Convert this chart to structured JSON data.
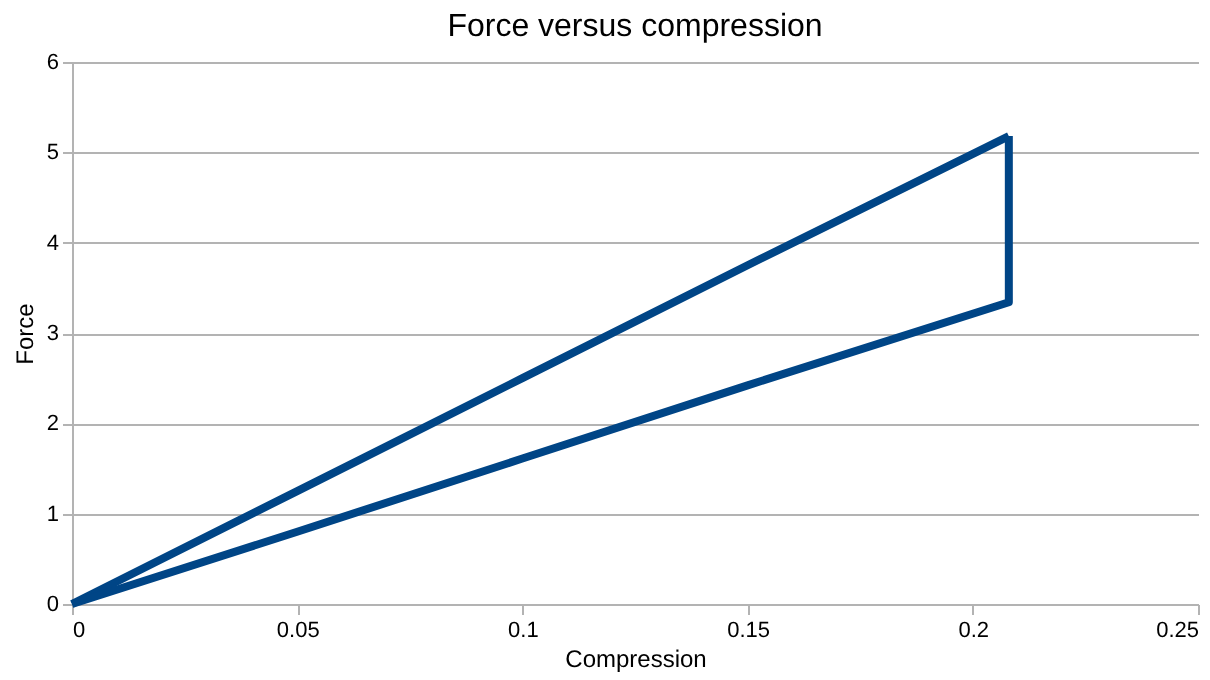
{
  "chart_data": {
    "type": "line",
    "title": "Force versus compression",
    "xlabel": "Compression",
    "ylabel": "Force",
    "series": [
      {
        "color": "#004586",
        "x": [
          0,
          0.05,
          0.1,
          0.15,
          0.208
        ],
        "values": [
          0,
          1.25,
          2.5,
          3.75,
          5.18
        ]
      },
      {
        "color": "#004586",
        "x": [
          0,
          0.05,
          0.1,
          0.15,
          0.208,
          0.208
        ],
        "values": [
          0,
          0.8,
          1.61,
          2.42,
          3.34,
          5.18
        ]
      }
    ],
    "xlim": [
      0,
      0.25
    ],
    "xticks": [
      0,
      0.05,
      0.1,
      0.15,
      0.2,
      0.25
    ],
    "ylim": [
      0,
      6
    ],
    "yticks": [
      0,
      1,
      2,
      3,
      4,
      5,
      6
    ],
    "grid": "y",
    "legend": false,
    "marker": "none",
    "line_style": "solid"
  }
}
